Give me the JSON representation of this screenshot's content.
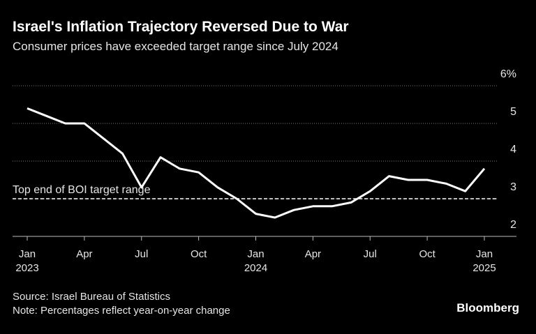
{
  "chart_data": {
    "type": "line",
    "title": "Israel's Inflation Trajectory Reversed Due to War",
    "subtitle": "Consumer prices have exceeded target range since July 2024",
    "categories": [
      "Jan",
      null,
      null,
      "Apr",
      null,
      null,
      "Jul",
      null,
      null,
      "Oct",
      null,
      null,
      "Jan",
      null,
      null,
      "Apr",
      null,
      null,
      "Jul",
      null,
      null,
      "Oct",
      null,
      null,
      "Jan"
    ],
    "year_labels": [
      "2023",
      null,
      null,
      null,
      null,
      null,
      null,
      null,
      null,
      null,
      null,
      null,
      "2024",
      null,
      null,
      null,
      null,
      null,
      null,
      null,
      null,
      null,
      null,
      null,
      "2025"
    ],
    "series": [
      {
        "color": "#ffffff",
        "values": [
          5.4,
          5.2,
          5.0,
          5.0,
          4.6,
          4.2,
          3.3,
          4.1,
          3.8,
          3.7,
          3.3,
          3.0,
          2.6,
          2.5,
          2.7,
          2.8,
          2.8,
          2.9,
          3.2,
          3.6,
          3.5,
          3.5,
          3.4,
          3.2,
          3.8
        ]
      }
    ],
    "ylim": [
      2,
      6
    ],
    "yticks": [
      2,
      3,
      4,
      5,
      {
        "value": 6,
        "label": "6%"
      }
    ],
    "grid": true,
    "reference_line": {
      "value": 3,
      "label": "Top end of BOI target range"
    },
    "source": "Source: Israel Bureau of Statistics",
    "note": "Note: Percentages reflect year-on-year change",
    "brand": "Bloomberg"
  }
}
